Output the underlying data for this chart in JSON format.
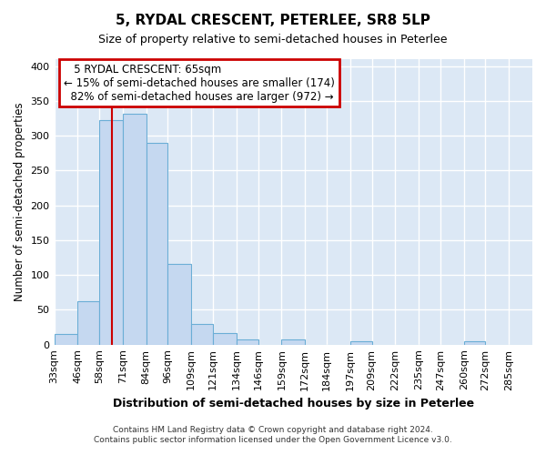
{
  "title": "5, RYDAL CRESCENT, PETERLEE, SR8 5LP",
  "subtitle": "Size of property relative to semi-detached houses in Peterlee",
  "xlabel": "Distribution of semi-detached houses by size in Peterlee",
  "ylabel": "Number of semi-detached properties",
  "bin_labels": [
    "33sqm",
    "46sqm",
    "58sqm",
    "71sqm",
    "84sqm",
    "96sqm",
    "109sqm",
    "121sqm",
    "134sqm",
    "146sqm",
    "159sqm",
    "172sqm",
    "184sqm",
    "197sqm",
    "209sqm",
    "222sqm",
    "235sqm",
    "247sqm",
    "260sqm",
    "272sqm",
    "285sqm"
  ],
  "bin_edges": [
    33,
    46,
    58,
    71,
    84,
    96,
    109,
    121,
    134,
    146,
    159,
    172,
    184,
    197,
    209,
    222,
    235,
    247,
    260,
    272,
    285,
    298
  ],
  "bar_heights": [
    15,
    62,
    322,
    331,
    290,
    116,
    30,
    16,
    8,
    0,
    7,
    0,
    0,
    5,
    0,
    0,
    0,
    0,
    5,
    0,
    0
  ],
  "bar_color": "#c5d8f0",
  "bar_edge_color": "#6baed6",
  "property_value": 65,
  "vline_x": 65,
  "vline_color": "#cc0000",
  "annotation_title": "5 RYDAL CRESCENT: 65sqm",
  "annotation_line1": "← 15% of semi-detached houses are smaller (174)",
  "annotation_line2": "82% of semi-detached houses are larger (972) →",
  "annotation_box_color": "#cc0000",
  "ylim": [
    0,
    410
  ],
  "yticks": [
    0,
    50,
    100,
    150,
    200,
    250,
    300,
    350,
    400
  ],
  "plot_bg_color": "#dce8f5",
  "fig_bg_color": "#ffffff",
  "grid_color": "#ffffff",
  "footer1": "Contains HM Land Registry data © Crown copyright and database right 2024.",
  "footer2": "Contains public sector information licensed under the Open Government Licence v3.0."
}
